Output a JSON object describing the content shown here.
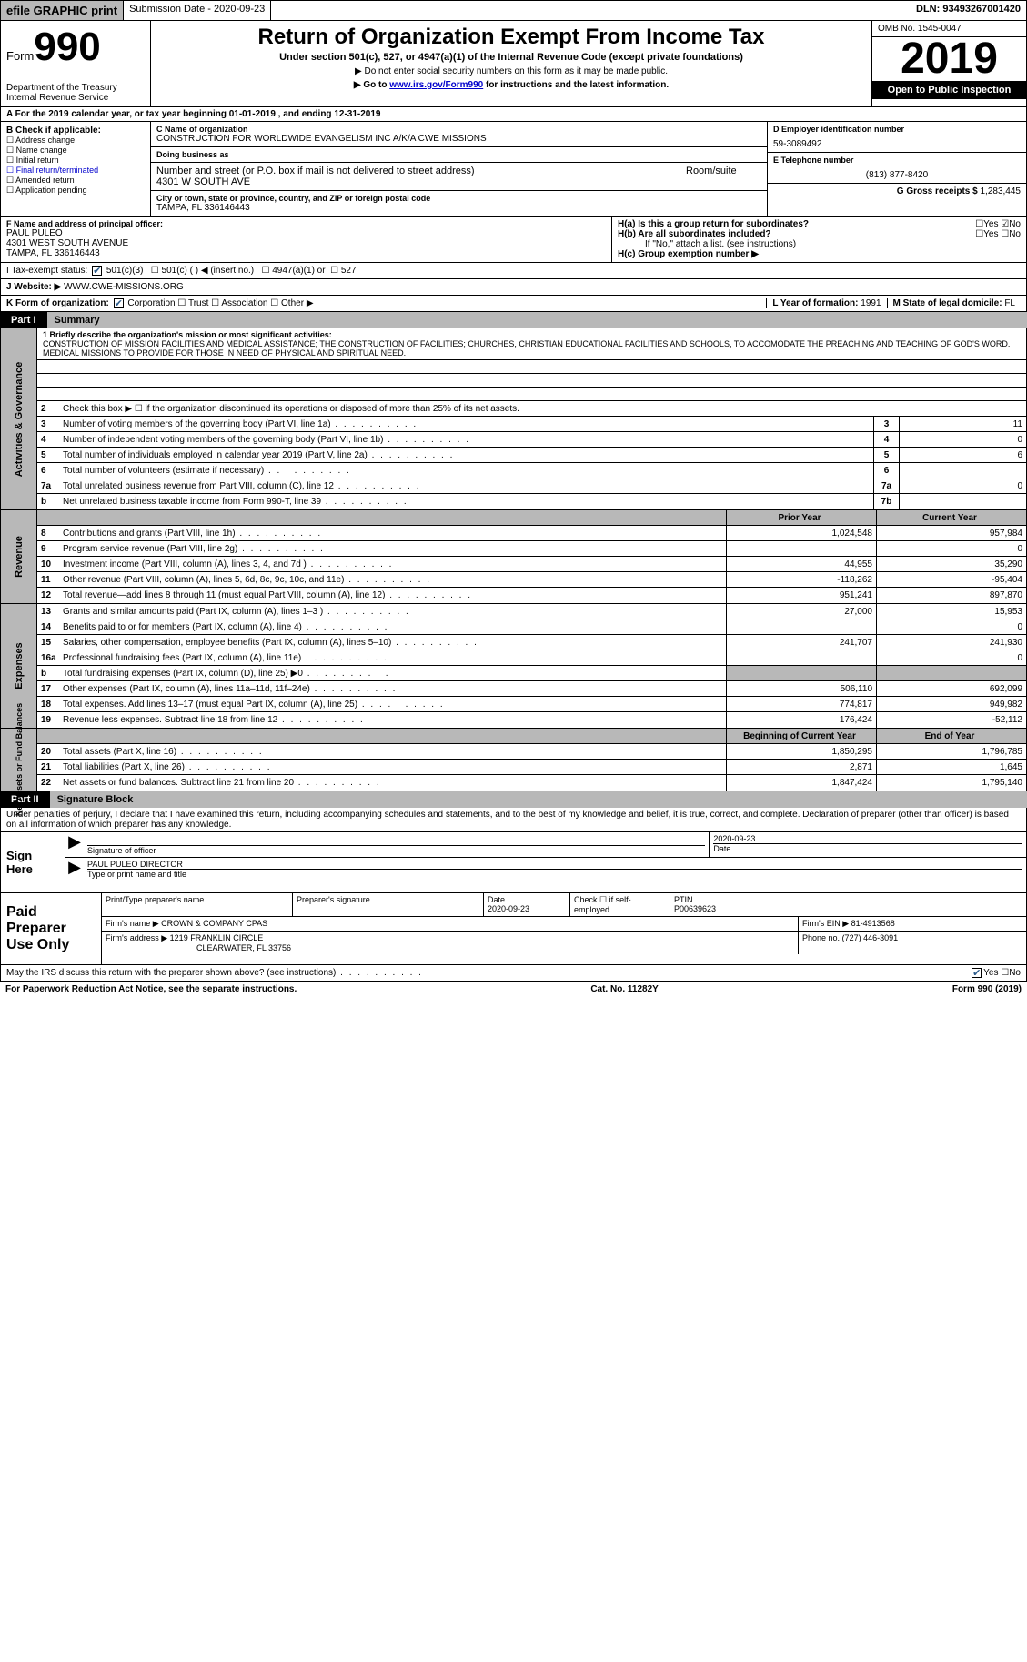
{
  "top": {
    "efile": "efile GRAPHIC print",
    "submission": "Submission Date - 2020-09-23",
    "dln": "DLN: 93493267001420"
  },
  "header": {
    "form": "Form",
    "form_num": "990",
    "dept": "Department of the Treasury\nInternal Revenue Service",
    "title": "Return of Organization Exempt From Income Tax",
    "sub": "Under section 501(c), 527, or 4947(a)(1) of the Internal Revenue Code (except private foundations)",
    "note1": "▶ Do not enter social security numbers on this form as it may be made public.",
    "note2_pre": "▶ Go to ",
    "note2_link": "www.irs.gov/Form990",
    "note2_post": " for instructions and the latest information.",
    "omb": "OMB No. 1545-0047",
    "year": "2019",
    "open": "Open to Public Inspection"
  },
  "period": "A For the 2019 calendar year, or tax year beginning 01-01-2019   , and ending 12-31-2019",
  "boxB": {
    "hdr": "B Check if applicable:",
    "items": [
      "Address change",
      "Name change",
      "Initial return",
      "Final return/terminated",
      "Amended return",
      "Application pending"
    ]
  },
  "boxC": {
    "name_lbl": "C Name of organization",
    "name": "CONSTRUCTION FOR WORLDWIDE EVANGELISM INC A/K/A CWE MISSIONS",
    "dba_lbl": "Doing business as",
    "addr_lbl": "Number and street (or P.O. box if mail is not delivered to street address)",
    "addr": "4301 W SOUTH AVE",
    "room_lbl": "Room/suite",
    "city_lbl": "City or town, state or province, country, and ZIP or foreign postal code",
    "city": "TAMPA, FL  336146443"
  },
  "boxD": {
    "ein_lbl": "D Employer identification number",
    "ein": "59-3089492",
    "tel_lbl": "E Telephone number",
    "tel": "(813) 877-8420",
    "gross_lbl": "G Gross receipts $",
    "gross": "1,283,445"
  },
  "boxF": {
    "lbl": "F Name and address of principal officer:",
    "name": "PAUL PULEO",
    "addr": "4301 WEST SOUTH AVENUE",
    "city": "TAMPA, FL  336146443"
  },
  "boxH": {
    "a": "H(a)  Is this a group return for subordinates?",
    "b": "H(b)  Are all subordinates included?",
    "b_note": "If \"No,\" attach a list. (see instructions)",
    "c": "H(c)  Group exemption number ▶"
  },
  "taxStatus": {
    "lbl": "I  Tax-exempt status:",
    "opts": [
      "501(c)(3)",
      "501(c) (  ) ◀ (insert no.)",
      "4947(a)(1) or",
      "527"
    ]
  },
  "website": {
    "lbl": "J  Website: ▶",
    "val": "WWW.CWE-MISSIONS.ORG"
  },
  "formOrg": {
    "lbl": "K Form of organization:",
    "opts": [
      "Corporation",
      "Trust",
      "Association",
      "Other ▶"
    ],
    "year_lbl": "L Year of formation:",
    "year": "1991",
    "state_lbl": "M State of legal domicile:",
    "state": "FL"
  },
  "part1": {
    "tab": "Part I",
    "title": "Summary"
  },
  "mission": {
    "q1": "1  Briefly describe the organization's mission or most significant activities:",
    "text": "CONSTRUCTION OF MISSION FACILITIES AND MEDICAL ASSISTANCE; THE CONSTRUCTION OF FACILITIES; CHURCHES, CHRISTIAN EDUCATIONAL FACILITIES AND SCHOOLS, TO ACCOMODATE THE PREACHING AND TEACHING OF GOD'S WORD. MEDICAL MISSIONS TO PROVIDE FOR THOSE IN NEED OF PHYSICAL AND SPIRITUAL NEED."
  },
  "gov": {
    "q2": "Check this box ▶ ☐  if the organization discontinued its operations or disposed of more than 25% of its net assets.",
    "rows": [
      {
        "n": "3",
        "d": "Number of voting members of the governing body (Part VI, line 1a)",
        "ln": "3",
        "v": "11"
      },
      {
        "n": "4",
        "d": "Number of independent voting members of the governing body (Part VI, line 1b)",
        "ln": "4",
        "v": "0"
      },
      {
        "n": "5",
        "d": "Total number of individuals employed in calendar year 2019 (Part V, line 2a)",
        "ln": "5",
        "v": "6"
      },
      {
        "n": "6",
        "d": "Total number of volunteers (estimate if necessary)",
        "ln": "6",
        "v": ""
      },
      {
        "n": "7a",
        "d": "Total unrelated business revenue from Part VIII, column (C), line 12",
        "ln": "7a",
        "v": "0"
      },
      {
        "n": "b",
        "d": "Net unrelated business taxable income from Form 990-T, line 39",
        "ln": "7b",
        "v": ""
      }
    ]
  },
  "revenue": {
    "hdr_prior": "Prior Year",
    "hdr_curr": "Current Year",
    "rows": [
      {
        "n": "8",
        "d": "Contributions and grants (Part VIII, line 1h)",
        "p": "1,024,548",
        "c": "957,984"
      },
      {
        "n": "9",
        "d": "Program service revenue (Part VIII, line 2g)",
        "p": "",
        "c": "0"
      },
      {
        "n": "10",
        "d": "Investment income (Part VIII, column (A), lines 3, 4, and 7d )",
        "p": "44,955",
        "c": "35,290"
      },
      {
        "n": "11",
        "d": "Other revenue (Part VIII, column (A), lines 5, 6d, 8c, 9c, 10c, and 11e)",
        "p": "-118,262",
        "c": "-95,404"
      },
      {
        "n": "12",
        "d": "Total revenue—add lines 8 through 11 (must equal Part VIII, column (A), line 12)",
        "p": "951,241",
        "c": "897,870"
      }
    ]
  },
  "expenses": {
    "rows": [
      {
        "n": "13",
        "d": "Grants and similar amounts paid (Part IX, column (A), lines 1–3 )",
        "p": "27,000",
        "c": "15,953"
      },
      {
        "n": "14",
        "d": "Benefits paid to or for members (Part IX, column (A), line 4)",
        "p": "",
        "c": "0"
      },
      {
        "n": "15",
        "d": "Salaries, other compensation, employee benefits (Part IX, column (A), lines 5–10)",
        "p": "241,707",
        "c": "241,930"
      },
      {
        "n": "16a",
        "d": "Professional fundraising fees (Part IX, column (A), line 11e)",
        "p": "",
        "c": "0"
      },
      {
        "n": "b",
        "d": "Total fundraising expenses (Part IX, column (D), line 25) ▶0",
        "p": "shaded",
        "c": "shaded"
      },
      {
        "n": "17",
        "d": "Other expenses (Part IX, column (A), lines 11a–11d, 11f–24e)",
        "p": "506,110",
        "c": "692,099"
      },
      {
        "n": "18",
        "d": "Total expenses. Add lines 13–17 (must equal Part IX, column (A), line 25)",
        "p": "774,817",
        "c": "949,982"
      },
      {
        "n": "19",
        "d": "Revenue less expenses. Subtract line 18 from line 12",
        "p": "176,424",
        "c": "-52,112"
      }
    ]
  },
  "netassets": {
    "hdr_prior": "Beginning of Current Year",
    "hdr_curr": "End of Year",
    "rows": [
      {
        "n": "20",
        "d": "Total assets (Part X, line 16)",
        "p": "1,850,295",
        "c": "1,796,785"
      },
      {
        "n": "21",
        "d": "Total liabilities (Part X, line 26)",
        "p": "2,871",
        "c": "1,645"
      },
      {
        "n": "22",
        "d": "Net assets or fund balances. Subtract line 21 from line 20",
        "p": "1,847,424",
        "c": "1,795,140"
      }
    ]
  },
  "part2": {
    "tab": "Part II",
    "title": "Signature Block"
  },
  "sigText": "Under penalties of perjury, I declare that I have examined this return, including accompanying schedules and statements, and to the best of my knowledge and belief, it is true, correct, and complete. Declaration of preparer (other than officer) is based on all information of which preparer has any knowledge.",
  "sign": {
    "here": "Sign Here",
    "sig_lbl": "Signature of officer",
    "date": "2020-09-23",
    "date_lbl": "Date",
    "name": "PAUL PULEO  DIRECTOR",
    "name_lbl": "Type or print name and title"
  },
  "paid": {
    "lbl": "Paid Preparer Use Only",
    "h1": "Print/Type preparer's name",
    "h2": "Preparer's signature",
    "h3": "Date",
    "h3v": "2020-09-23",
    "h4": "Check ☐ if self-employed",
    "h5": "PTIN",
    "h5v": "P00639623",
    "firm_lbl": "Firm's name    ▶",
    "firm": "CROWN & COMPANY CPAS",
    "ein_lbl": "Firm's EIN ▶",
    "ein": "81-4913568",
    "addr_lbl": "Firm's address ▶",
    "addr": "1219 FRANKLIN CIRCLE",
    "city": "CLEARWATER, FL  33756",
    "phone_lbl": "Phone no.",
    "phone": "(727) 446-3091"
  },
  "discuss": "May the IRS discuss this return with the preparer shown above? (see instructions)",
  "footer": {
    "pra": "For Paperwork Reduction Act Notice, see the separate instructions.",
    "cat": "Cat. No. 11282Y",
    "form": "Form 990 (2019)"
  }
}
